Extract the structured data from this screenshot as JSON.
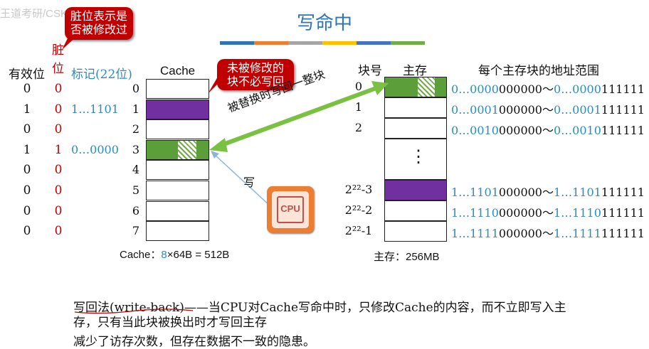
{
  "title": "写命中",
  "accent_bars": [
    "#2e75b6",
    "#ed7d31",
    "#a5a5a5",
    "#ffc000",
    "#4472c4",
    "#70ad47"
  ],
  "overlay_text": "王道考研/CSKAOYAN",
  "callouts": {
    "dirty_meaning": "脏位表示是否被修改过",
    "no_write": "未被修改的块不必写回"
  },
  "headers": {
    "valid": "有效位",
    "dirty": "脏位",
    "tag": "标记(22位)",
    "cache": "Cache",
    "block_no": "块号",
    "memory": "主存",
    "addr_range": "每个主存块的地址范围"
  },
  "cache_lines": [
    {
      "index": "0",
      "valid": "0",
      "dirty": "0",
      "tag": "",
      "fill": "#ffffff",
      "hatch": false
    },
    {
      "index": "1",
      "valid": "1",
      "dirty": "0",
      "tag": "1…1101",
      "fill": "#7030a0",
      "hatch": false
    },
    {
      "index": "2",
      "valid": "0",
      "dirty": "0",
      "tag": "",
      "fill": "#ffffff",
      "hatch": false
    },
    {
      "index": "3",
      "valid": "1",
      "dirty": "1",
      "tag": "0…0000",
      "fill": "#5b9e3a",
      "hatch": true
    },
    {
      "index": "4",
      "valid": "0",
      "dirty": "0",
      "tag": "",
      "fill": "#ffffff",
      "hatch": false
    },
    {
      "index": "5",
      "valid": "0",
      "dirty": "0",
      "tag": "",
      "fill": "#ffffff",
      "hatch": false
    },
    {
      "index": "6",
      "valid": "0",
      "dirty": "0",
      "tag": "",
      "fill": "#ffffff",
      "hatch": false
    },
    {
      "index": "7",
      "valid": "0",
      "dirty": "0",
      "tag": "",
      "fill": "#ffffff",
      "hatch": false
    }
  ],
  "cache_caption": {
    "prefix": "Cache：",
    "count": "8",
    "rest": "×64B = 512B"
  },
  "memory_blocks": [
    {
      "index": "0",
      "fill": "#5b9e3a",
      "hatch": true,
      "addr_a": "0…0000",
      "addr_b": "000000",
      "addr_c": "0…0000",
      "addr_d": "111111"
    },
    {
      "index": "1",
      "fill": "#ffffff",
      "hatch": false,
      "addr_a": "0…0001",
      "addr_b": "000000",
      "addr_c": "0…0001",
      "addr_d": "111111"
    },
    {
      "index": "2",
      "fill": "#ffffff",
      "hatch": false,
      "addr_a": "0…0010",
      "addr_b": "000000",
      "addr_c": "0…0010",
      "addr_d": "111111"
    },
    {
      "index": "2²²-3",
      "fill": "#7030a0",
      "hatch": false,
      "addr_a": "1…1101",
      "addr_b": "000000",
      "addr_c": "1…1101",
      "addr_d": "111111"
    },
    {
      "index": "2²²-2",
      "fill": "#ffffff",
      "hatch": false,
      "addr_a": "1…1110",
      "addr_b": "000000",
      "addr_c": "1…1110",
      "addr_d": "111111"
    },
    {
      "index": "2²²-1",
      "fill": "#ffffff",
      "hatch": false,
      "addr_a": "1…1111",
      "addr_b": "000000",
      "addr_c": "1…1111",
      "addr_d": "111111"
    }
  ],
  "tilde": "～",
  "vdots": "⋮",
  "memory_caption": "主存：256MB",
  "arrow_label": "被替换时写回一整块",
  "write_label": "写",
  "cpu_label": "CPU",
  "text": {
    "line1": "写回法(write-back)——当CPU对Cache写命中时，只修改Cache的内容，而不立即写入主",
    "line2": "存，只有当此块被换出时才写回主存",
    "line3": "减少了访存次数，但存在数据不一致的隐患。"
  }
}
